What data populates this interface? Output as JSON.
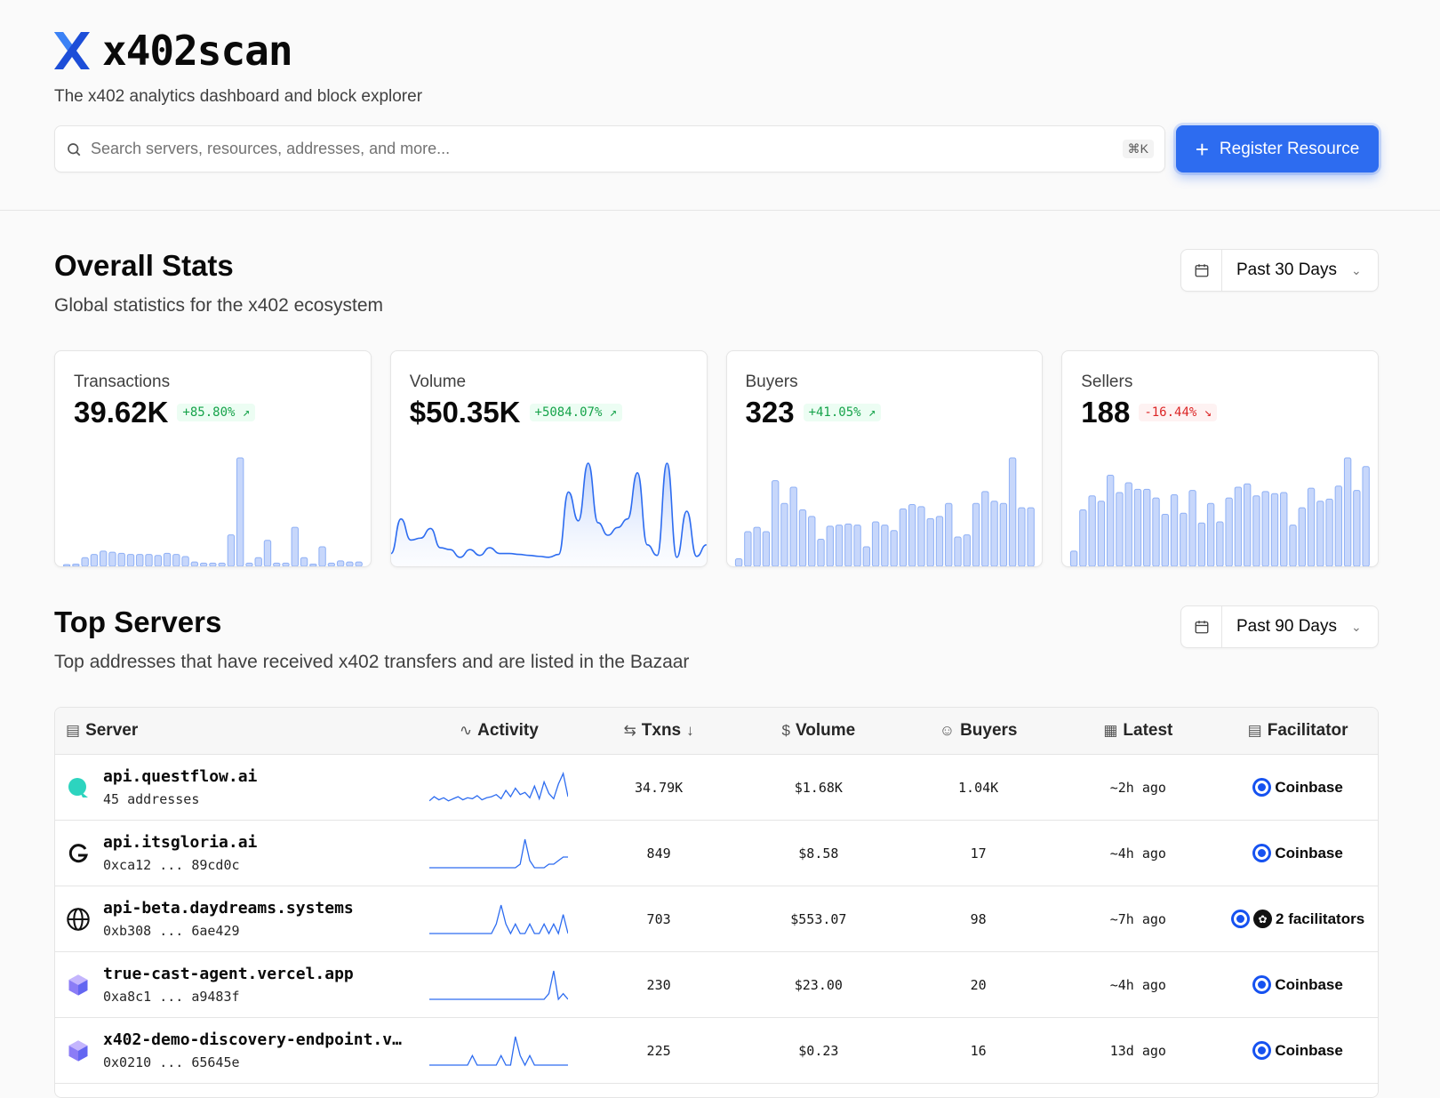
{
  "brand": {
    "name": "x402scan",
    "tagline": "The x402 analytics dashboard and block explorer"
  },
  "search": {
    "placeholder": "Search servers, resources, addresses, and more...",
    "shortcut": "⌘K"
  },
  "register_button": "Register Resource",
  "overall": {
    "title": "Overall Stats",
    "subtitle": "Global statistics for the x402 ecosystem",
    "range": "Past 30 Days",
    "cards": [
      {
        "label": "Transactions",
        "value": "39.62K",
        "delta": "+85.80%",
        "trend": "up",
        "kind": "bars",
        "series": [
          1,
          2,
          8,
          11,
          14,
          13,
          12,
          11,
          11,
          11,
          10,
          12,
          11,
          9,
          4,
          3,
          3,
          3,
          29,
          100,
          3,
          8,
          24,
          3,
          3,
          36,
          8,
          2,
          18,
          3,
          5,
          4,
          4
        ]
      },
      {
        "label": "Volume",
        "value": "$50.35K",
        "delta": "+5084.07%",
        "trend": "up",
        "kind": "area",
        "series": [
          6,
          42,
          20,
          22,
          32,
          12,
          10,
          2,
          10,
          4,
          12,
          6,
          6,
          5,
          4,
          3,
          2,
          5,
          70,
          40,
          100,
          38,
          25,
          33,
          42,
          90,
          15,
          4,
          100,
          2,
          50,
          3,
          15
        ]
      },
      {
        "label": "Buyers",
        "value": "323",
        "delta": "+41.05%",
        "trend": "up",
        "kind": "bars",
        "series": [
          7,
          32,
          36,
          32,
          79,
          58,
          73,
          52,
          46,
          25,
          37,
          38,
          39,
          38,
          18,
          41,
          38,
          33,
          53,
          57,
          55,
          44,
          46,
          58,
          27,
          29,
          58,
          69,
          60,
          58,
          100,
          54,
          54
        ]
      },
      {
        "label": "Sellers",
        "value": "188",
        "delta": "-16.44%",
        "trend": "down",
        "kind": "bars",
        "series": [
          14,
          52,
          65,
          60,
          84,
          68,
          77,
          71,
          71,
          63,
          48,
          66,
          49,
          70,
          40,
          58,
          41,
          63,
          73,
          76,
          65,
          69,
          67,
          68,
          38,
          54,
          72,
          60,
          62,
          74,
          100,
          70,
          92
        ]
      }
    ]
  },
  "top_servers": {
    "title": "Top Servers",
    "subtitle": "Top addresses that have received x402 transfers and are listed in the Bazaar",
    "range": "Past 90 Days",
    "columns": {
      "server": "Server",
      "activity": "Activity",
      "txns": "Txns",
      "volume": "Volume",
      "buyers": "Buyers",
      "latest": "Latest",
      "facilitator": "Facilitator"
    },
    "rows": [
      {
        "name": "api.questflow.ai",
        "sub": "45 addresses",
        "icon": "questflow-logo-icon",
        "txns": "34.79K",
        "volume": "$1.68K",
        "buyers": "1.04K",
        "latest": "~2h ago",
        "facilitator": "Coinbase",
        "activity": [
          2,
          6,
          3,
          5,
          2,
          4,
          6,
          3,
          5,
          4,
          7,
          3,
          5,
          6,
          8,
          4,
          12,
          6,
          14,
          8,
          10,
          5,
          16,
          4,
          20,
          9,
          4,
          18,
          28,
          6
        ]
      },
      {
        "name": "api.itsgloria.ai",
        "sub": "0xca12 ... 89cd0c",
        "icon": "gloria-logo-icon",
        "txns": "849",
        "volume": "$8.58",
        "buyers": "17",
        "latest": "~4h ago",
        "facilitator": "Coinbase",
        "activity": [
          1,
          1,
          1,
          1,
          1,
          1,
          1,
          1,
          1,
          1,
          1,
          1,
          1,
          1,
          1,
          1,
          1,
          1,
          1,
          2,
          9,
          3,
          1,
          1,
          1,
          2,
          2,
          3,
          4,
          4
        ]
      },
      {
        "name": "api-beta.daydreams.systems",
        "sub": "0xb308 ... 6ae429",
        "icon": "globe-icon",
        "txns": "703",
        "volume": "$553.07",
        "buyers": "98",
        "latest": "~7h ago",
        "facilitator": "2 facilitators",
        "activity": [
          1,
          1,
          1,
          1,
          1,
          1,
          1,
          1,
          1,
          1,
          1,
          1,
          1,
          1,
          2,
          4,
          2,
          1,
          2,
          1,
          1,
          2,
          1,
          1,
          2,
          1,
          2,
          1,
          3,
          1
        ]
      },
      {
        "name": "true-cast-agent.vercel.app",
        "sub": "0xa8c1 ... a9483f",
        "icon": "cube-icon",
        "txns": "230",
        "volume": "$23.00",
        "buyers": "20",
        "latest": "~4h ago",
        "facilitator": "Coinbase",
        "activity": [
          1,
          1,
          1,
          1,
          1,
          1,
          1,
          1,
          1,
          1,
          1,
          1,
          1,
          1,
          1,
          1,
          1,
          1,
          1,
          1,
          1,
          1,
          1,
          1,
          1,
          2,
          6,
          1,
          2,
          1
        ]
      },
      {
        "name": "x402-demo-discovery-endpoint.v…",
        "sub": "0x0210 ... 65645e",
        "icon": "cube-icon",
        "txns": "225",
        "volume": "$0.23",
        "buyers": "16",
        "latest": "13d ago",
        "facilitator": "Coinbase",
        "activity": [
          1,
          1,
          1,
          1,
          1,
          1,
          1,
          1,
          1,
          2,
          1,
          1,
          1,
          1,
          1,
          2,
          1,
          1,
          4,
          2,
          1,
          2,
          1,
          1,
          1,
          1,
          1,
          1,
          1,
          1
        ]
      }
    ]
  }
}
